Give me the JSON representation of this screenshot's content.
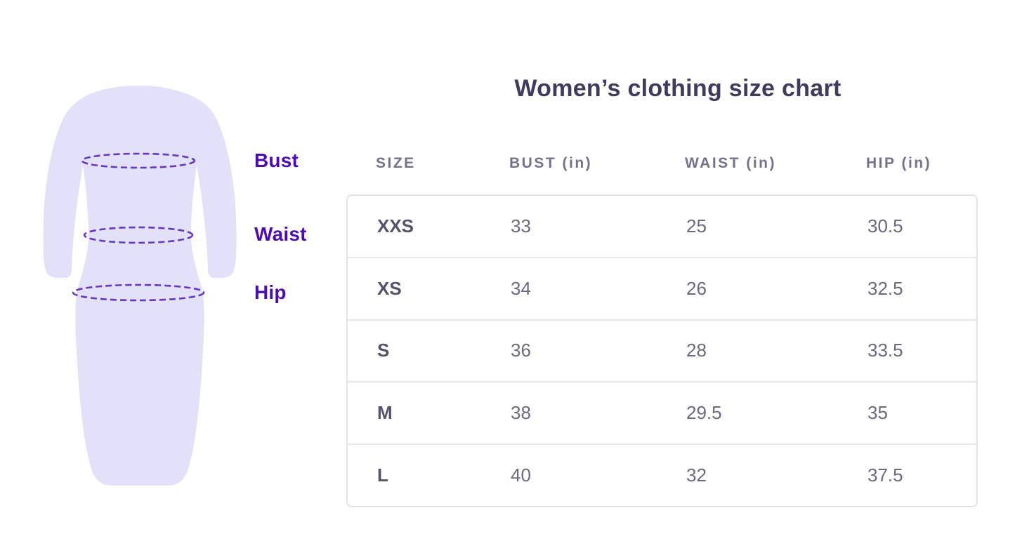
{
  "title": "Women’s clothing size chart",
  "diagram": {
    "labels": {
      "bust": "Bust",
      "waist": "Waist",
      "hip": "Hip"
    },
    "colors": {
      "dress_fill": "#e3e0f9",
      "measure_dash": "#6538be",
      "label_text": "#4d0dae",
      "title_text": "#3e3b5c",
      "table_border": "#e5e3e8"
    }
  },
  "table": {
    "headers": [
      "SIZE",
      "BUST (in)",
      "WAIST (in)",
      "HIP (in)"
    ],
    "rows": [
      [
        "XXS",
        "33",
        "25",
        "30.5"
      ],
      [
        "XS",
        "34",
        "26",
        "32.5"
      ],
      [
        "S",
        "36",
        "28",
        "33.5"
      ],
      [
        "M",
        "38",
        "29.5",
        "35"
      ],
      [
        "L",
        "40",
        "32",
        "37.5"
      ]
    ]
  },
  "chart_data": {
    "type": "table",
    "title": "Women’s clothing size chart",
    "columns": [
      "SIZE",
      "BUST (in)",
      "WAIST (in)",
      "HIP (in)"
    ],
    "rows": [
      {
        "size": "XXS",
        "bust_in": 33,
        "waist_in": 25,
        "hip_in": 30.5
      },
      {
        "size": "XS",
        "bust_in": 34,
        "waist_in": 26,
        "hip_in": 32.5
      },
      {
        "size": "S",
        "bust_in": 36,
        "waist_in": 28,
        "hip_in": 33.5
      },
      {
        "size": "M",
        "bust_in": 38,
        "waist_in": 29.5,
        "hip_in": 35
      },
      {
        "size": "L",
        "bust_in": 40,
        "waist_in": 32,
        "hip_in": 37.5
      }
    ],
    "notes": "Dress diagram marks Bust, Waist and Hip measurement lines"
  }
}
